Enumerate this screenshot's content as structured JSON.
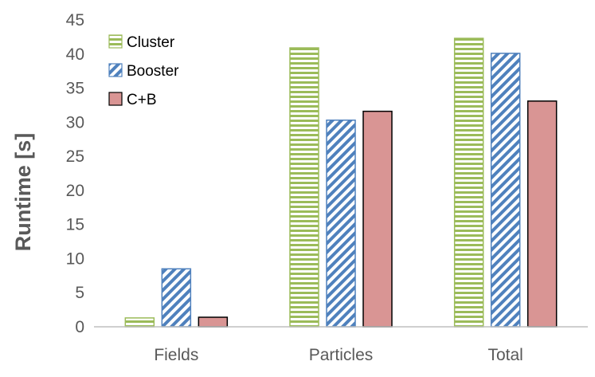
{
  "chart_data": {
    "type": "bar",
    "title": "",
    "xlabel": "",
    "ylabel": "Runtime [s]",
    "ylim": [
      0,
      45
    ],
    "yticks": [
      0,
      5,
      10,
      15,
      20,
      25,
      30,
      35,
      40,
      45
    ],
    "categories": [
      "Fields",
      "Particles",
      "Total"
    ],
    "series": [
      {
        "name": "Cluster",
        "values": [
          1.3,
          40.9,
          42.3
        ],
        "color": "#9BBB59",
        "pattern": "horizontal-stripes"
      },
      {
        "name": "Booster",
        "values": [
          8.5,
          30.3,
          40.1
        ],
        "color": "#4F81BD",
        "pattern": "diagonal-stripes"
      },
      {
        "name": "C+B",
        "values": [
          1.4,
          31.6,
          33.1
        ],
        "color": "#D99594",
        "pattern": "solid"
      }
    ],
    "legend": "top-left",
    "grid": false
  }
}
